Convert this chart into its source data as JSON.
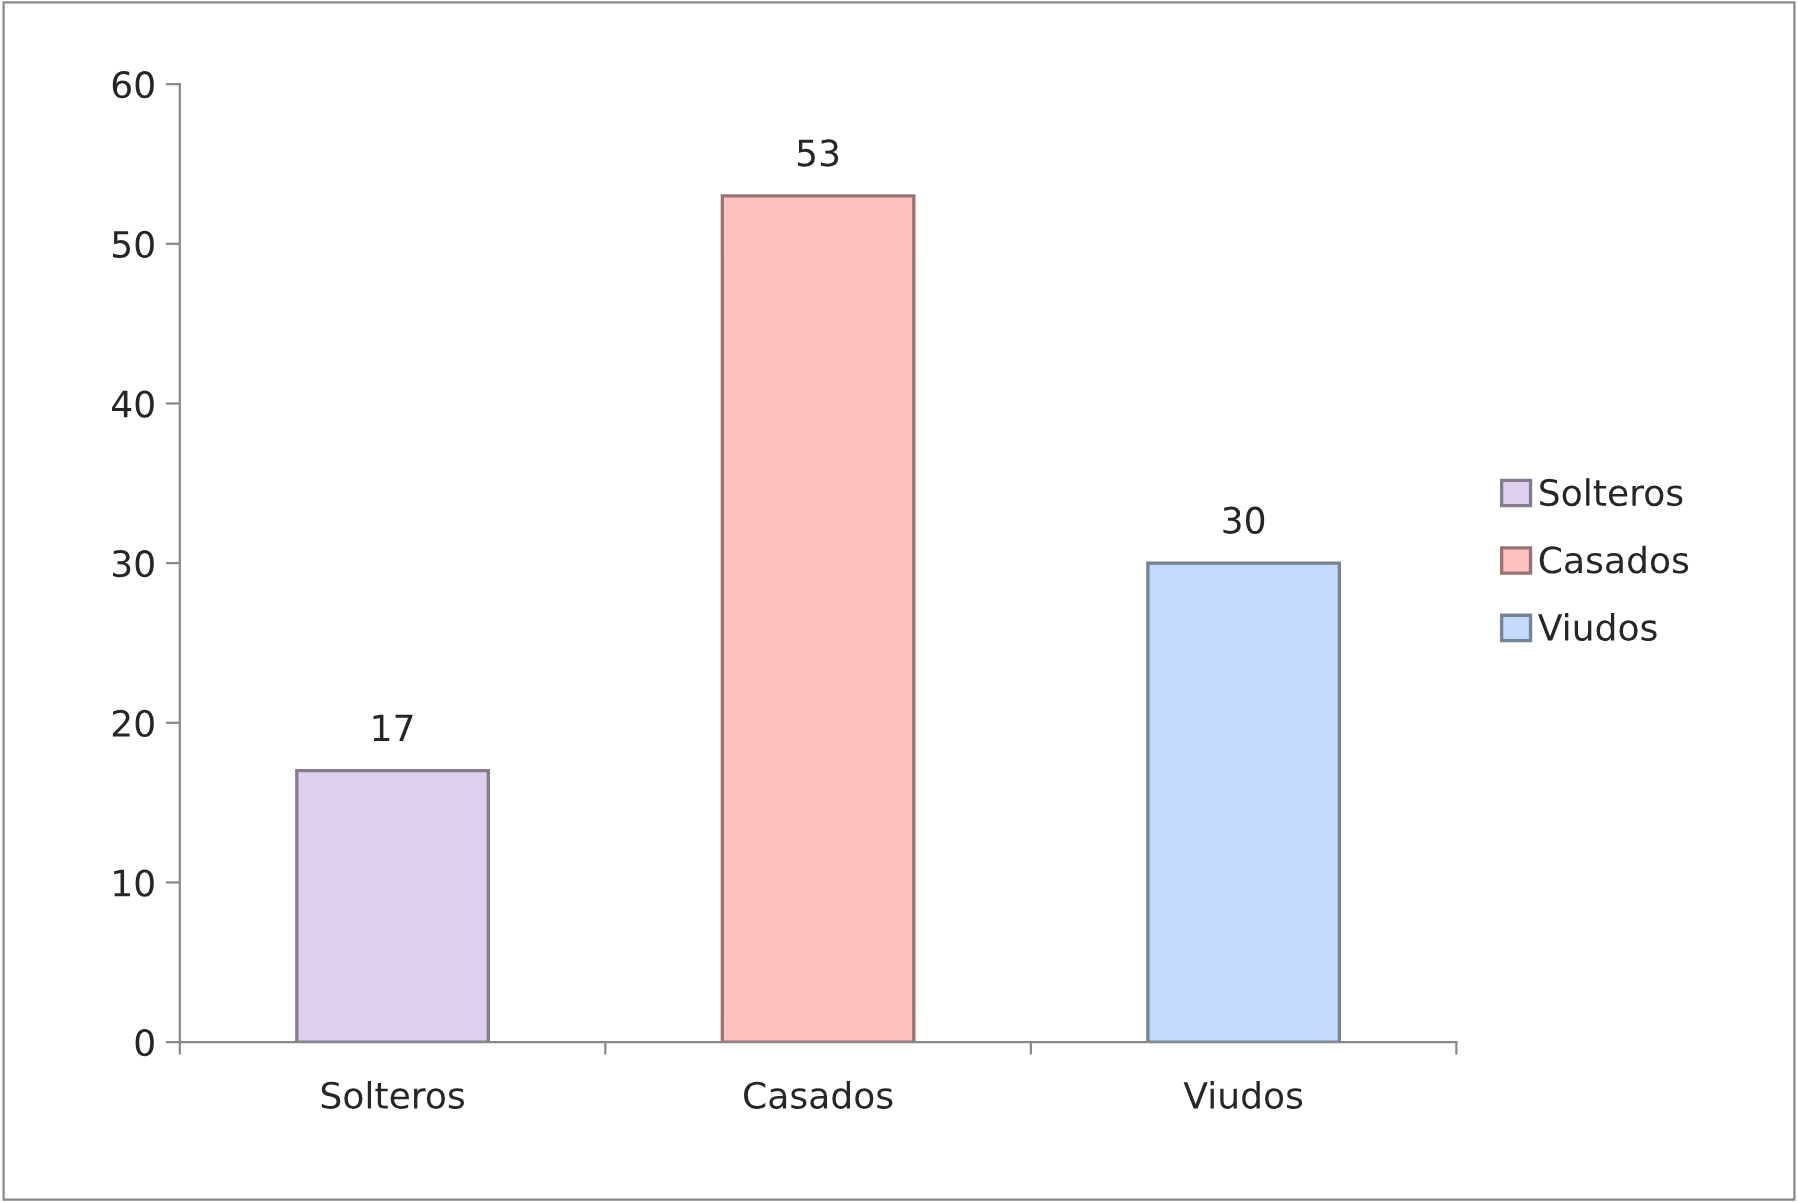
{
  "chart_data": {
    "type": "bar",
    "categories": [
      "Solteros",
      "Casados",
      "Viudos"
    ],
    "series": [
      {
        "name": "Solteros",
        "color": "#ddd0ee",
        "values": [
          17,
          null,
          null
        ]
      },
      {
        "name": "Casados",
        "color": "#ffc0c0",
        "values": [
          null,
          53,
          null
        ]
      },
      {
        "name": "Viudos",
        "color": "#c4dafc",
        "values": [
          null,
          null,
          30
        ]
      }
    ],
    "ylim": [
      0,
      60
    ],
    "yticks": [
      0,
      10,
      20,
      30,
      40,
      50,
      60
    ],
    "data_labels": true,
    "grid": false,
    "legend": "right"
  }
}
